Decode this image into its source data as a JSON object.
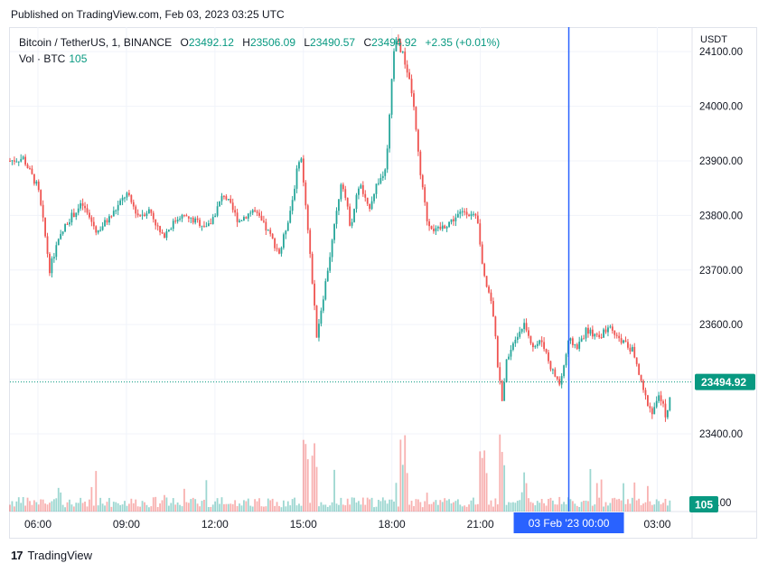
{
  "header": {
    "published": "Published on TradingView.com, Feb 03, 2023 03:25 UTC"
  },
  "legend": {
    "symbol": "Bitcoin / TetherUS, 1, BINANCE",
    "open_label": "O",
    "open": "23492.12",
    "high_label": "H",
    "high": "23506.09",
    "low_label": "L",
    "low": "23490.57",
    "close_label": "C",
    "close": "23494.92",
    "change": "+2.35 (+0.01%)",
    "volume_label": "Vol · BTC",
    "volume": "105"
  },
  "axis": {
    "unit": "USDT"
  },
  "footer": {
    "brand": "TradingView"
  },
  "colors": {
    "up": "#26a69a",
    "down": "#ef5350",
    "accent": "#2962ff",
    "price_tag": "#089981"
  },
  "chart_data": {
    "type": "candlestick",
    "y_ticks": [
      23400,
      23500,
      23600,
      23700,
      23800,
      23900,
      24000,
      24100
    ],
    "y_tick_labels": [
      "23400.00",
      "23500.00",
      "23600.00",
      "23700.00",
      "23800.00",
      "23900.00",
      "24000.00",
      "24100.00"
    ],
    "x_tick_labels": [
      {
        "t": 6,
        "label": "06:00"
      },
      {
        "t": 9,
        "label": "09:00"
      },
      {
        "t": 12,
        "label": "12:00"
      },
      {
        "t": 15,
        "label": "15:00"
      },
      {
        "t": 18,
        "label": "18:00"
      },
      {
        "t": 21,
        "label": "21:00"
      },
      {
        "t": 27,
        "label": "03:00"
      }
    ],
    "crosshair": {
      "t": 24,
      "label": "03 Feb '23   00:00"
    },
    "last_price": {
      "value": 23494.92,
      "label": "23494.92"
    },
    "last_volume": {
      "label": "105"
    },
    "volume_tick_label": "0.00",
    "x_range_hours": [
      5.05,
      28.15
    ],
    "y_range": [
      23390,
      24145
    ],
    "price_path": [
      [
        5.05,
        23900
      ],
      [
        5.5,
        23905
      ],
      [
        6.0,
        23850
      ],
      [
        6.2,
        23780
      ],
      [
        6.4,
        23700
      ],
      [
        6.6,
        23740
      ],
      [
        7.0,
        23790
      ],
      [
        7.5,
        23820
      ],
      [
        8.0,
        23770
      ],
      [
        8.5,
        23800
      ],
      [
        9.0,
        23840
      ],
      [
        9.4,
        23800
      ],
      [
        9.8,
        23810
      ],
      [
        10.2,
        23760
      ],
      [
        10.8,
        23800
      ],
      [
        11.3,
        23790
      ],
      [
        11.8,
        23780
      ],
      [
        12.3,
        23840
      ],
      [
        12.8,
        23790
      ],
      [
        13.3,
        23810
      ],
      [
        13.8,
        23770
      ],
      [
        14.2,
        23730
      ],
      [
        14.6,
        23820
      ],
      [
        14.9,
        23920
      ],
      [
        15.1,
        23800
      ],
      [
        15.3,
        23680
      ],
      [
        15.45,
        23580
      ],
      [
        15.7,
        23660
      ],
      [
        16.0,
        23760
      ],
      [
        16.3,
        23870
      ],
      [
        16.6,
        23780
      ],
      [
        16.9,
        23860
      ],
      [
        17.2,
        23810
      ],
      [
        17.5,
        23860
      ],
      [
        17.8,
        23880
      ],
      [
        18.1,
        24130
      ],
      [
        18.4,
        24090
      ],
      [
        18.7,
        24020
      ],
      [
        18.95,
        23880
      ],
      [
        19.2,
        23790
      ],
      [
        19.5,
        23770
      ],
      [
        20.0,
        23790
      ],
      [
        20.5,
        23810
      ],
      [
        20.9,
        23790
      ],
      [
        21.1,
        23690
      ],
      [
        21.4,
        23640
      ],
      [
        21.6,
        23520
      ],
      [
        21.75,
        23450
      ],
      [
        21.9,
        23540
      ],
      [
        22.2,
        23580
      ],
      [
        22.5,
        23600
      ],
      [
        22.8,
        23560
      ],
      [
        23.1,
        23570
      ],
      [
        23.4,
        23520
      ],
      [
        23.7,
        23490
      ],
      [
        24.0,
        23570
      ],
      [
        24.3,
        23560
      ],
      [
        24.6,
        23590
      ],
      [
        25.0,
        23580
      ],
      [
        25.4,
        23590
      ],
      [
        25.8,
        23570
      ],
      [
        26.2,
        23550
      ],
      [
        26.5,
        23480
      ],
      [
        26.8,
        23440
      ],
      [
        27.1,
        23470
      ],
      [
        27.3,
        23430
      ],
      [
        27.5,
        23495
      ]
    ],
    "volume_range": [
      0,
      105
    ],
    "volume_spikes": [
      [
        15.05,
        95
      ],
      [
        18.4,
        90
      ],
      [
        21.1,
        75
      ],
      [
        21.75,
        80
      ],
      [
        15.4,
        85
      ]
    ]
  }
}
